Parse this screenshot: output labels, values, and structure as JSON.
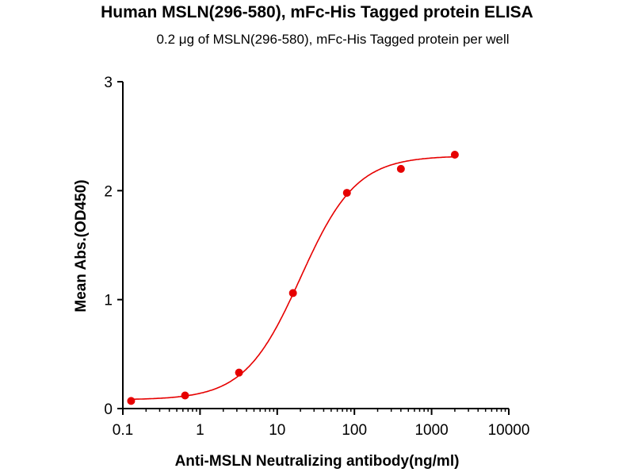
{
  "chart_data": {
    "type": "scatter",
    "title": "Human MSLN(296-580), mFc-His Tagged protein ELISA",
    "subtitle": "0.2 μg of MSLN(296-580), mFc-His Tagged protein per well",
    "xlabel": "Anti-MSLN Neutralizing antibody(ng/ml)",
    "ylabel": "Mean Abs.(OD450)",
    "xscale": "log",
    "xlim": [
      0.1,
      10000
    ],
    "ylim": [
      0,
      3
    ],
    "xticks": [
      "0.1",
      "1",
      "10",
      "100",
      "1000",
      "10000"
    ],
    "yticks": [
      "0",
      "1",
      "2",
      "3"
    ],
    "grid": false,
    "color": "#e60000",
    "series": [
      {
        "name": "ELISA",
        "x": [
          0.128,
          0.64,
          3.2,
          16,
          80,
          400,
          2000
        ],
        "y": [
          0.07,
          0.12,
          0.33,
          1.06,
          1.98,
          2.2,
          2.33
        ]
      }
    ],
    "fit": {
      "type": "4PL",
      "bottom": 0.08,
      "top": 2.32,
      "ec50": 20,
      "hill": 1.2
    }
  }
}
